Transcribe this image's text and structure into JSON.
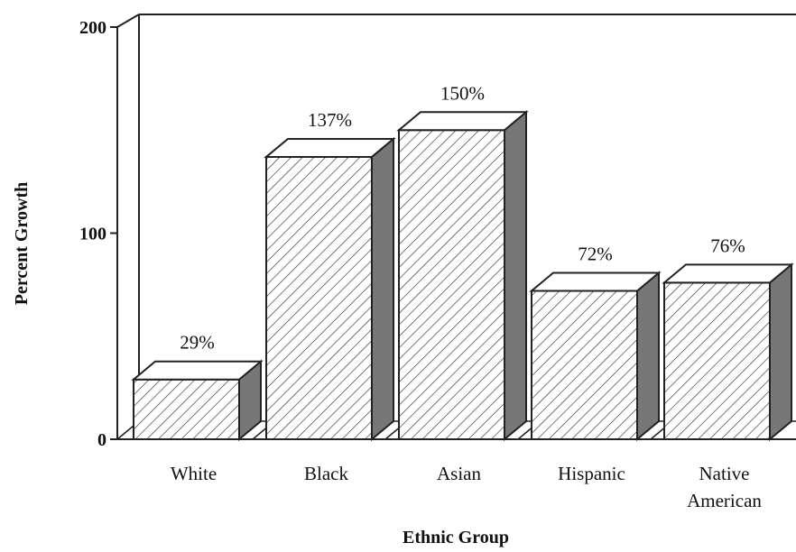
{
  "chart_data": {
    "type": "bar",
    "style": "3d",
    "title": "",
    "xlabel": "Ethnic Group",
    "ylabel": "Percent Growth",
    "ylim": [
      0,
      200
    ],
    "yticks": [
      "0",
      "100",
      "200"
    ],
    "categories": [
      [
        "White"
      ],
      [
        "Black"
      ],
      [
        "Asian"
      ],
      [
        "Hispanic"
      ],
      [
        "Native",
        "American"
      ]
    ],
    "values": [
      29,
      137,
      150,
      72,
      76
    ],
    "data_labels": [
      "29%",
      "137%",
      "150%",
      "72%",
      "76%"
    ],
    "bar_fill": "diagonal-hatch",
    "colors": {
      "bar_front": "#ffffff",
      "bar_side": "#777777",
      "bar_top": "#ffffff",
      "hatch": "#333333",
      "axis": "#222222"
    }
  }
}
